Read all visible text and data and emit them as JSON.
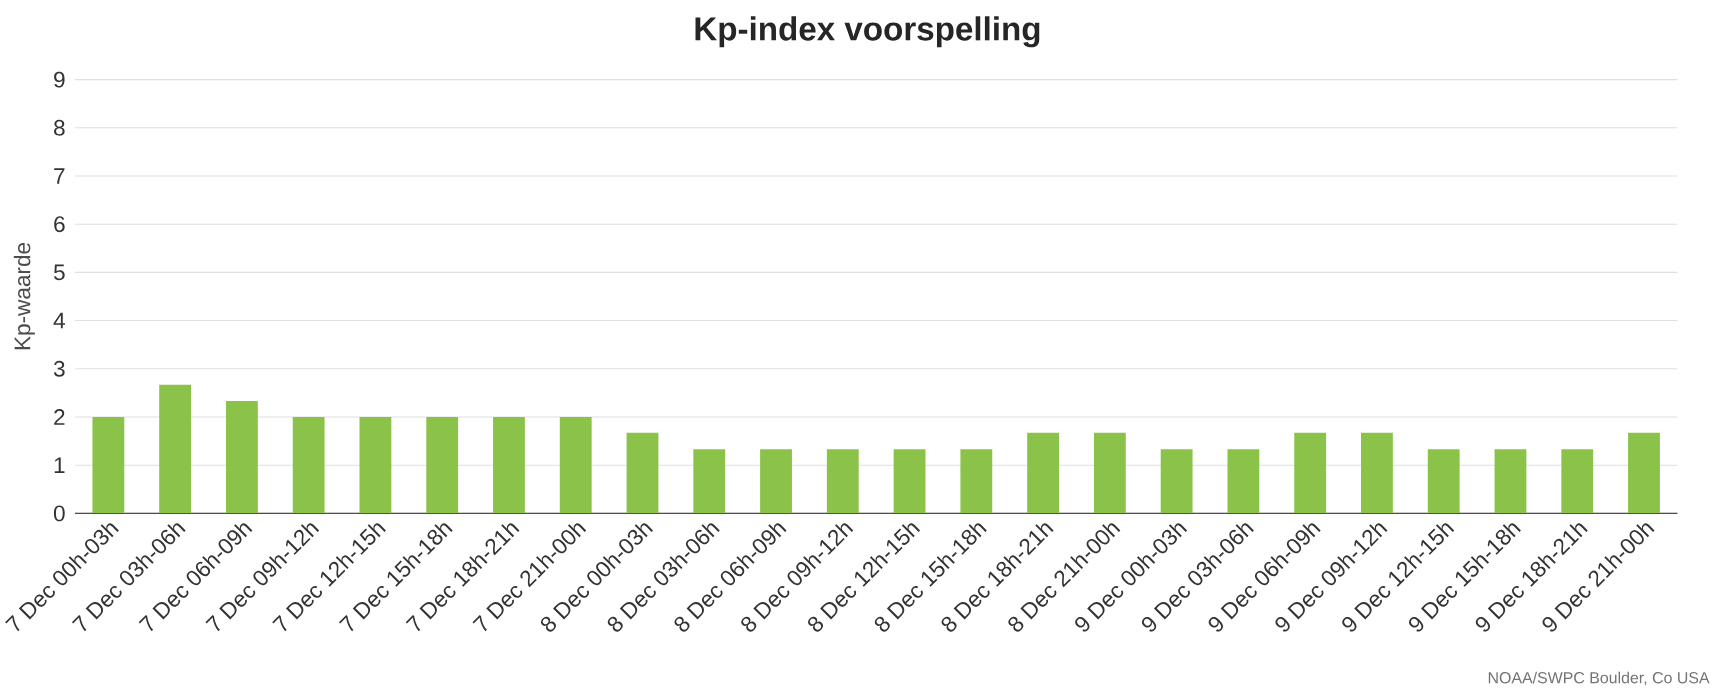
{
  "chart_data": {
    "type": "bar",
    "title": "Kp-index voorspelling",
    "ylabel": "Kp-waarde",
    "categories": [
      "7 Dec 00h-03h",
      "7 Dec 03h-06h",
      "7 Dec 06h-09h",
      "7 Dec 09h-12h",
      "7 Dec 12h-15h",
      "7 Dec 15h-18h",
      "7 Dec 18h-21h",
      "7 Dec 21h-00h",
      "8 Dec 00h-03h",
      "8 Dec 03h-06h",
      "8 Dec 06h-09h",
      "8 Dec 09h-12h",
      "8 Dec 12h-15h",
      "8 Dec 15h-18h",
      "8 Dec 18h-21h",
      "8 Dec 21h-00h",
      "9 Dec 00h-03h",
      "9 Dec 03h-06h",
      "9 Dec 06h-09h",
      "9 Dec 09h-12h",
      "9 Dec 12h-15h",
      "9 Dec 15h-18h",
      "9 Dec 18h-21h",
      "9 Dec 21h-00h"
    ],
    "values": [
      2,
      2.67,
      2.33,
      2,
      2,
      2,
      2,
      2,
      1.67,
      1.33,
      1.33,
      1.33,
      1.33,
      1.33,
      1.67,
      1.67,
      1.33,
      1.33,
      1.67,
      1.67,
      1.33,
      1.33,
      1.33,
      1.67
    ],
    "color": "#8bc34a",
    "ylim": [
      0,
      9
    ],
    "yticks": [
      0,
      1,
      2,
      3,
      4,
      5,
      6,
      7,
      8,
      9
    ],
    "grid": "y",
    "annotations": [
      "NOAA/SWPC Boulder, Co USA"
    ]
  }
}
